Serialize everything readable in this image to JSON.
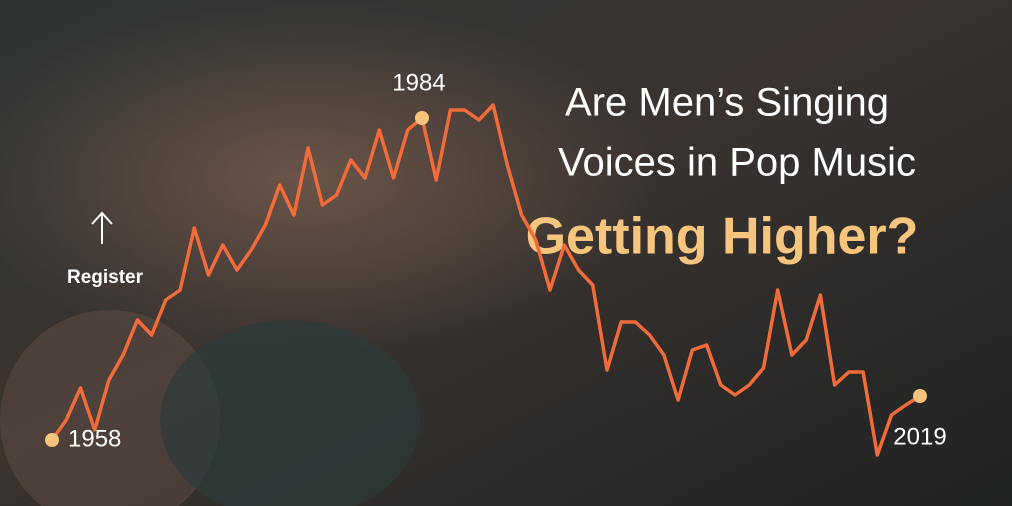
{
  "chart_data": {
    "type": "line",
    "title": [
      "Are Men’s Singing",
      "Voices in Pop Music",
      "Getting Higher?"
    ],
    "y_label": "Register",
    "x": [
      1958,
      1959,
      1960,
      1961,
      1962,
      1963,
      1964,
      1965,
      1966,
      1967,
      1968,
      1969,
      1970,
      1971,
      1972,
      1973,
      1974,
      1975,
      1976,
      1977,
      1978,
      1979,
      1980,
      1981,
      1982,
      1983,
      1984,
      1985,
      1986,
      1987,
      1988,
      1989,
      1990,
      1991,
      1992,
      1993,
      1994,
      1995,
      1996,
      1997,
      1998,
      1999,
      2000,
      2001,
      2002,
      2003,
      2004,
      2005,
      2006,
      2007,
      2008,
      2009,
      2010,
      2011,
      2012,
      2013,
      2014,
      2015,
      2016,
      2017,
      2018,
      2019
    ],
    "values": [
      10,
      15,
      23,
      12.5,
      25,
      31.25,
      40,
      36.25,
      45,
      47.5,
      63,
      51.25,
      58.75,
      52.5,
      57.5,
      63.75,
      73.75,
      66.25,
      83,
      68.75,
      71.25,
      80,
      75.5,
      87.5,
      75.5,
      87.5,
      90.5,
      75,
      92.5,
      92.5,
      90,
      93.75,
      78.75,
      66.25,
      60,
      47.5,
      58.75,
      52.5,
      48.75,
      27.5,
      39.5,
      39.5,
      36.25,
      31.25,
      20,
      32.5,
      33.75,
      23.75,
      21.25,
      23.75,
      28,
      47.5,
      31.25,
      35,
      46.25,
      23.75,
      27,
      27,
      6.25,
      16.25,
      18.75,
      21
    ],
    "color": "#f26b3a",
    "highlight_color": "#f7c47e",
    "highlighted_years": [
      1958,
      1984,
      2019
    ],
    "xlim": [
      1958,
      2019
    ],
    "ylim": [
      0,
      100
    ]
  }
}
